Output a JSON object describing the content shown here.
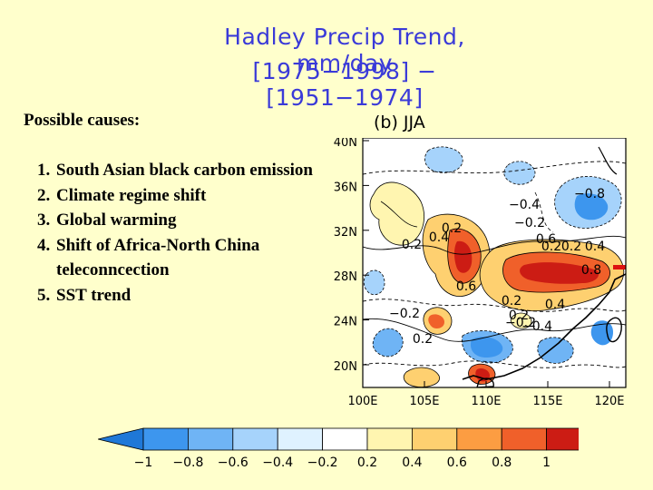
{
  "title": {
    "line1": "Hadley Precip Trend, mm/day",
    "line2": "[1975−1998] − [1951−1974]"
  },
  "causes": {
    "heading": "Possible causes:",
    "items": [
      "South Asian  black carbon emission",
      "Climate regime shift",
      "Global warming",
      "Shift of Africa-North China teleconncection",
      "SST trend"
    ]
  },
  "map": {
    "panel_label": "(b)  JJA",
    "lat_ticks": [
      "40N",
      "36N",
      "32N",
      "28N",
      "24N",
      "20N"
    ],
    "lon_ticks": [
      "100E",
      "105E",
      "110E",
      "115E",
      "120E"
    ],
    "contour_labels": [
      "−0.4",
      "−0.8",
      "−0.2",
      "0.2",
      "0.4",
      "0.2",
      "0.6",
      "0.2",
      "0.2",
      "0.4",
      "0.8",
      "0.2",
      "0.6",
      "−0.2",
      "0.2",
      "0.4",
      "−0.2",
      "−0.4",
      "0.2"
    ]
  },
  "colorbar": {
    "ticks": [
      "−1",
      "−0.8",
      "−0.6",
      "−0.4",
      "−0.2",
      "0.2",
      "0.4",
      "0.6",
      "0.8",
      "1"
    ],
    "colors": [
      "#1f78d8",
      "#3d96ee",
      "#6fb4f5",
      "#a6d3fb",
      "#dff2ff",
      "#ffffff",
      "#fff5b0",
      "#fed070",
      "#fc9d42",
      "#f0602a",
      "#cc1c14",
      "#9c0a0a"
    ]
  }
}
